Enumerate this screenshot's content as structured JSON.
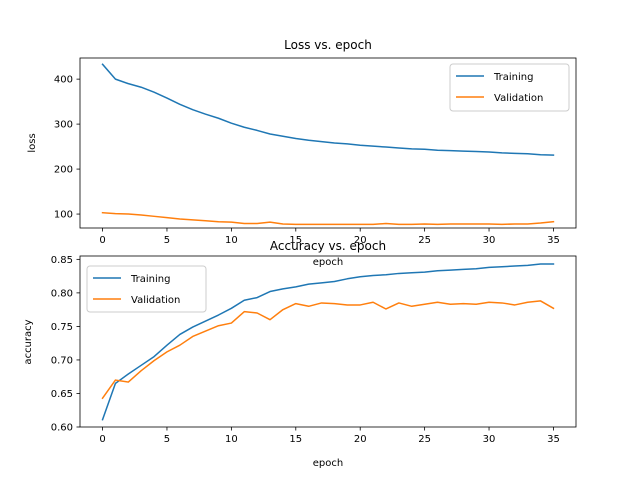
{
  "chart_data": [
    {
      "type": "line",
      "title": "Loss vs. epoch",
      "xlabel": "epoch",
      "ylabel": "loss",
      "xlim": [
        -1.75,
        36.75
      ],
      "ylim": [
        69,
        447
      ],
      "xticks": [
        0,
        5,
        10,
        15,
        20,
        25,
        30,
        35
      ],
      "yticks": [
        100,
        200,
        300,
        400
      ],
      "grid": false,
      "legend_position": "upper right",
      "x": [
        0,
        1,
        2,
        3,
        4,
        5,
        6,
        7,
        8,
        9,
        10,
        11,
        12,
        13,
        14,
        15,
        16,
        17,
        18,
        19,
        20,
        21,
        22,
        23,
        24,
        25,
        26,
        27,
        28,
        29,
        30,
        31,
        32,
        33,
        34,
        35
      ],
      "series": [
        {
          "name": "Training",
          "color": "#1f77b4",
          "values": [
            433,
            400,
            390,
            382,
            371,
            358,
            344,
            332,
            322,
            313,
            302,
            293,
            286,
            278,
            273,
            268,
            264,
            261,
            258,
            256,
            253,
            251,
            249,
            247,
            245,
            244,
            242,
            241,
            240,
            239,
            238,
            236,
            235,
            234,
            232,
            231
          ]
        },
        {
          "name": "Validation",
          "color": "#ff7f0e",
          "values": [
            103,
            101,
            100,
            98,
            95,
            92,
            89,
            87,
            85,
            83,
            82,
            79,
            79,
            82,
            78,
            77,
            77,
            77,
            77,
            77,
            77,
            77,
            79,
            77,
            77,
            78,
            77,
            78,
            78,
            78,
            78,
            77,
            78,
            78,
            80,
            83
          ]
        }
      ]
    },
    {
      "type": "line",
      "title": "Accuracy vs. epoch",
      "xlabel": "epoch",
      "ylabel": "accuracy",
      "xlim": [
        -1.75,
        36.75
      ],
      "ylim": [
        0.6,
        0.855
      ],
      "xticks": [
        0,
        5,
        10,
        15,
        20,
        25,
        30,
        35
      ],
      "yticks": [
        0.6,
        0.65,
        0.7,
        0.75,
        0.8,
        0.85
      ],
      "ytick_labels": [
        "0.60",
        "0.65",
        "0.70",
        "0.75",
        "0.80",
        "0.85"
      ],
      "grid": false,
      "legend_position": "upper left",
      "x": [
        0,
        1,
        2,
        3,
        4,
        5,
        6,
        7,
        8,
        9,
        10,
        11,
        12,
        13,
        14,
        15,
        16,
        17,
        18,
        19,
        20,
        21,
        22,
        23,
        24,
        25,
        26,
        27,
        28,
        29,
        30,
        31,
        32,
        33,
        34,
        35
      ],
      "series": [
        {
          "name": "Training",
          "color": "#1f77b4",
          "values": [
            0.611,
            0.665,
            0.679,
            0.692,
            0.705,
            0.722,
            0.738,
            0.749,
            0.758,
            0.767,
            0.777,
            0.789,
            0.793,
            0.802,
            0.806,
            0.809,
            0.813,
            0.815,
            0.817,
            0.821,
            0.824,
            0.826,
            0.827,
            0.829,
            0.83,
            0.831,
            0.833,
            0.834,
            0.835,
            0.836,
            0.838,
            0.839,
            0.84,
            0.841,
            0.843,
            0.843
          ]
        },
        {
          "name": "Validation",
          "color": "#ff7f0e",
          "values": [
            0.643,
            0.67,
            0.667,
            0.684,
            0.699,
            0.712,
            0.722,
            0.735,
            0.743,
            0.751,
            0.755,
            0.772,
            0.77,
            0.76,
            0.775,
            0.784,
            0.78,
            0.785,
            0.784,
            0.782,
            0.782,
            0.786,
            0.776,
            0.785,
            0.78,
            0.783,
            0.786,
            0.783,
            0.784,
            0.783,
            0.786,
            0.785,
            0.782,
            0.786,
            0.788,
            0.777
          ]
        }
      ]
    }
  ]
}
